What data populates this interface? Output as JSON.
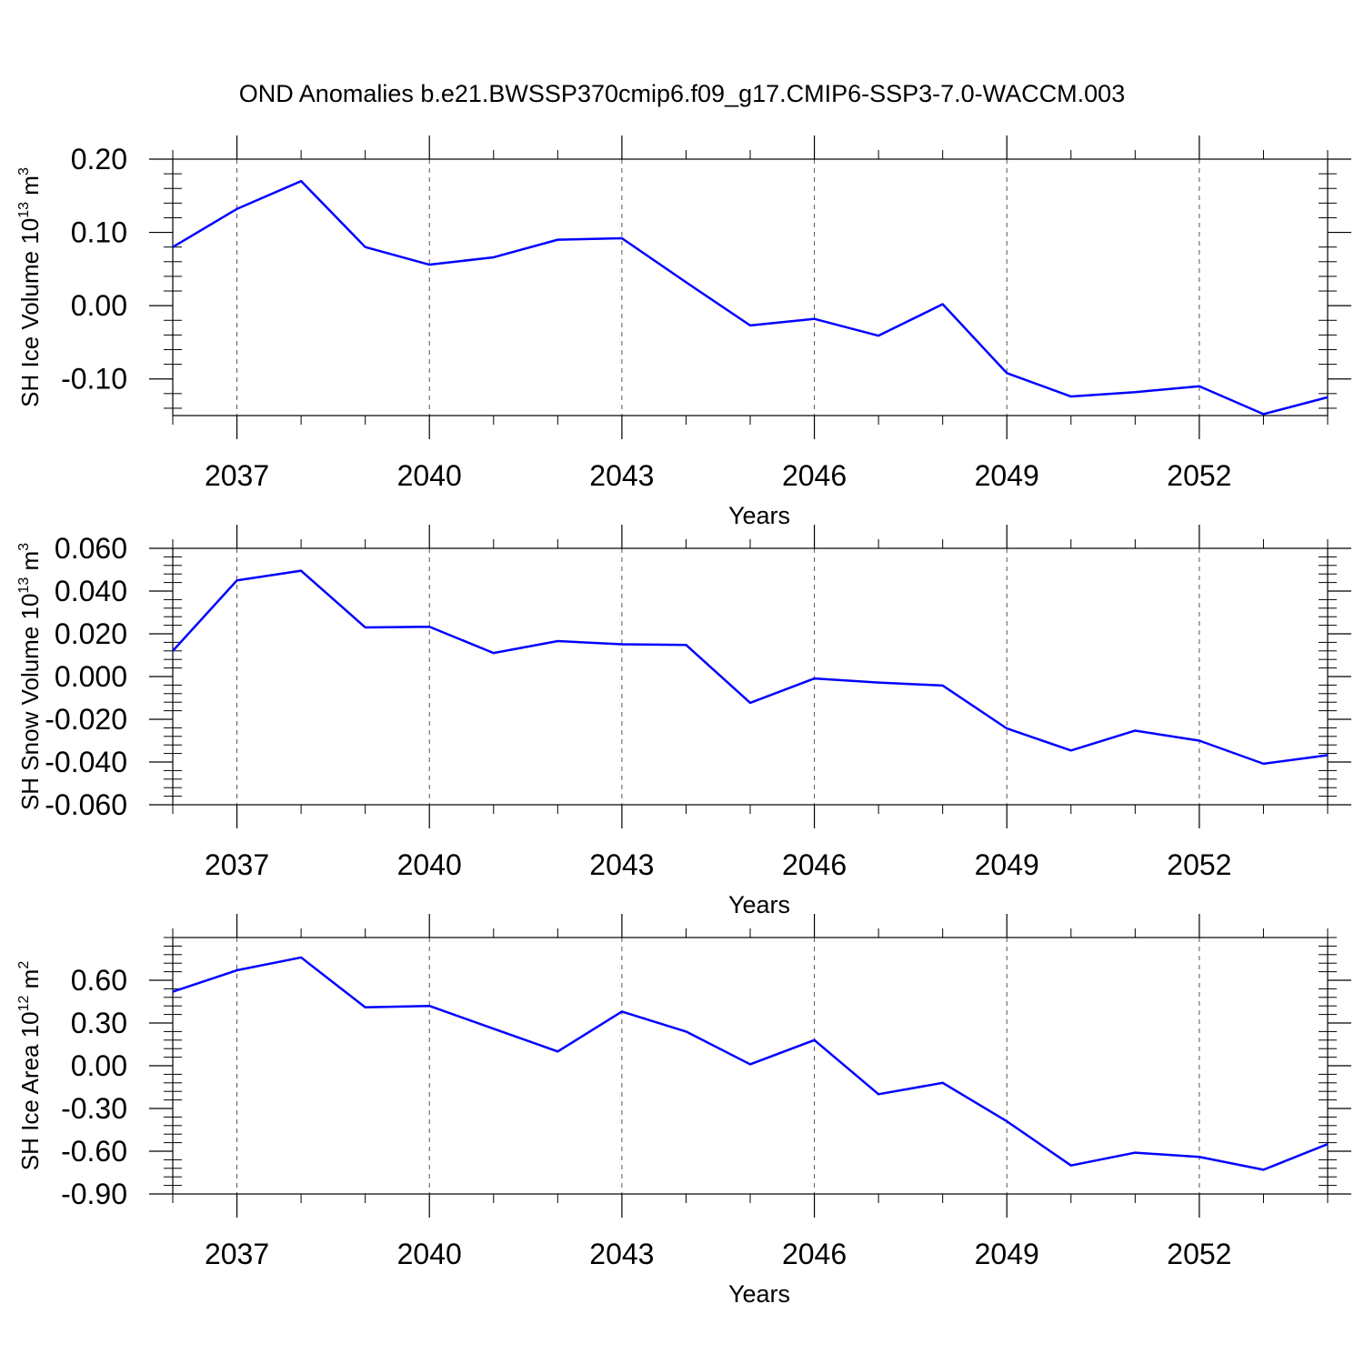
{
  "title": "OND Anomalies b.e21.BWSSP370cmip6.f09_g17.CMIP6-SSP3-7.0-WACCM.003",
  "colors": {
    "line": "#0000ff",
    "axis": "#000000",
    "grid": "#555555"
  },
  "chart_data": [
    {
      "type": "line",
      "ylabel": {
        "text": "SH Ice Volume 10",
        "sup1": "13",
        "mid": " m",
        "sup2": "3"
      },
      "xlabel": "Years",
      "xlim": [
        2036,
        2054
      ],
      "ylim": [
        -0.15,
        0.2
      ],
      "yticks": [
        0.2,
        0.1,
        0.0,
        -0.1
      ],
      "ytick_labels": [
        "0.20",
        "0.10",
        "0.00",
        "-0.10"
      ],
      "xticks": [
        2037,
        2040,
        2043,
        2046,
        2049,
        2052
      ],
      "xtick_labels": [
        "2037",
        "2040",
        "2043",
        "2046",
        "2049",
        "2052"
      ],
      "grid": "vertical dashed at major x ticks",
      "x": [
        2036,
        2037,
        2038,
        2039,
        2040,
        2041,
        2042,
        2043,
        2044,
        2045,
        2046,
        2047,
        2048,
        2049,
        2050,
        2051,
        2052,
        2053,
        2054
      ],
      "series": [
        {
          "values": [
            0.08,
            0.132,
            0.17,
            0.08,
            0.056,
            0.066,
            0.09,
            0.092,
            0.032,
            -0.027,
            -0.018,
            -0.041,
            0.002,
            -0.092,
            -0.124,
            -0.118,
            -0.11,
            -0.148,
            -0.125
          ]
        }
      ]
    },
    {
      "type": "line",
      "ylabel": {
        "text": "SH Snow Volume 10",
        "sup1": "13",
        "mid": " m",
        "sup2": "3"
      },
      "xlabel": "Years",
      "xlim": [
        2036,
        2054
      ],
      "ylim": [
        -0.06,
        0.06
      ],
      "yticks": [
        0.06,
        0.04,
        0.02,
        0.0,
        -0.02,
        -0.04,
        -0.06
      ],
      "ytick_labels": [
        "0.060",
        "0.040",
        "0.020",
        "0.000",
        "-0.020",
        "-0.040",
        "-0.060"
      ],
      "xticks": [
        2037,
        2040,
        2043,
        2046,
        2049,
        2052
      ],
      "xtick_labels": [
        "2037",
        "2040",
        "2043",
        "2046",
        "2049",
        "2052"
      ],
      "grid": "vertical dashed at major x ticks",
      "x": [
        2036,
        2037,
        2038,
        2039,
        2040,
        2041,
        2042,
        2043,
        2044,
        2045,
        2046,
        2047,
        2048,
        2049,
        2050,
        2051,
        2052,
        2053,
        2054
      ],
      "series": [
        {
          "values": [
            0.012,
            0.045,
            0.0495,
            0.023,
            0.0233,
            0.011,
            0.0166,
            0.0151,
            0.0148,
            -0.0123,
            -0.0009,
            -0.0028,
            -0.0042,
            -0.0243,
            -0.0346,
            -0.0253,
            -0.03,
            -0.0408,
            -0.0368
          ]
        }
      ]
    },
    {
      "type": "line",
      "ylabel": {
        "text": "SH Ice Area 10",
        "sup1": "12",
        "mid": " m",
        "sup2": "2"
      },
      "xlabel": "Years",
      "xlim": [
        2036,
        2054
      ],
      "ylim": [
        -0.9,
        0.9
      ],
      "yticks": [
        0.6,
        0.3,
        0.0,
        -0.3,
        -0.6,
        -0.9
      ],
      "ytick_labels": [
        "0.60",
        "0.30",
        "0.00",
        "-0.30",
        "-0.60",
        "-0.90"
      ],
      "xticks": [
        2037,
        2040,
        2043,
        2046,
        2049,
        2052
      ],
      "xtick_labels": [
        "2037",
        "2040",
        "2043",
        "2046",
        "2049",
        "2052"
      ],
      "grid": "vertical dashed at major x ticks",
      "x": [
        2036,
        2037,
        2038,
        2039,
        2040,
        2041,
        2042,
        2043,
        2044,
        2045,
        2046,
        2047,
        2048,
        2049,
        2050,
        2051,
        2052,
        2053,
        2054
      ],
      "series": [
        {
          "values": [
            0.52,
            0.67,
            0.76,
            0.41,
            0.42,
            0.26,
            0.1,
            0.38,
            0.24,
            0.01,
            0.18,
            -0.2,
            -0.12,
            -0.39,
            -0.7,
            -0.61,
            -0.64,
            -0.73,
            -0.55
          ]
        }
      ]
    }
  ]
}
